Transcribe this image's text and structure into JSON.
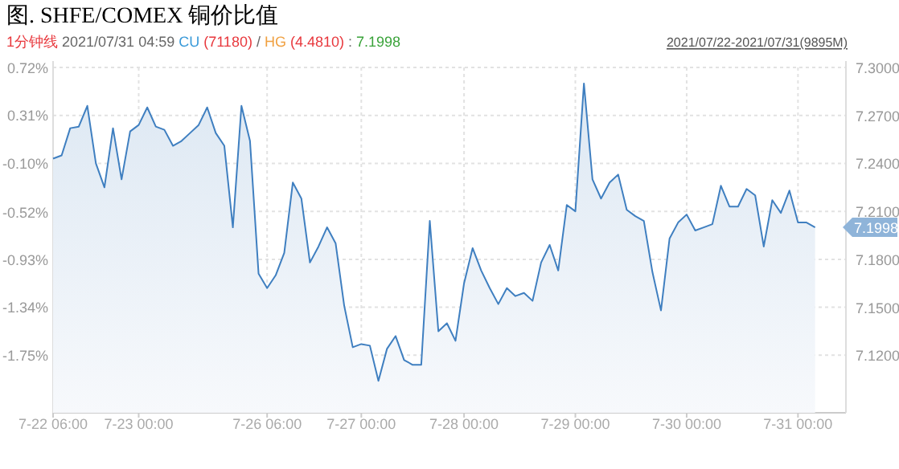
{
  "chart_data": {
    "type": "area",
    "title": "图. SHFE/COMEX 铜价比值",
    "annotations": [
      "1分钟线 2021/07/31 04:59 CU (71180) / HG (4.4810) : 7.1998",
      "2021/07/22-2021/07/31(9895M)",
      "7.1998"
    ],
    "grid": true,
    "categories": [
      "7-22 06:00",
      null,
      null,
      null,
      null,
      null,
      null,
      null,
      null,
      null,
      "7-23 00:00",
      null,
      null,
      null,
      null,
      null,
      null,
      null,
      null,
      null,
      null,
      null,
      null,
      null,
      null,
      "7-26 06:00",
      null,
      null,
      null,
      null,
      null,
      null,
      null,
      null,
      null,
      null,
      "7-27 00:00",
      null,
      null,
      null,
      null,
      null,
      null,
      null,
      null,
      null,
      null,
      null,
      "7-28 00:00",
      null,
      null,
      null,
      null,
      null,
      null,
      null,
      null,
      null,
      null,
      null,
      null,
      "7-29 00:00",
      null,
      null,
      null,
      null,
      null,
      null,
      null,
      null,
      null,
      null,
      null,
      null,
      "7-30 00:00",
      null,
      null,
      null,
      null,
      null,
      null,
      null,
      null,
      null,
      null,
      null,
      null,
      "7-31 00:00",
      null,
      null,
      null,
      null,
      null
    ],
    "ylim": [
      7.084,
      7.3
    ],
    "yticks": [
      {
        "value": 7.3,
        "label": "7.3000"
      },
      {
        "value": 7.27,
        "label": "7.2700"
      },
      {
        "value": 7.24,
        "label": "7.2400"
      },
      {
        "value": 7.21,
        "label": "7.2100"
      },
      {
        "value": 7.18,
        "label": "7.1800"
      },
      {
        "value": 7.15,
        "label": "7.1500"
      },
      {
        "value": 7.12,
        "label": "7.1200"
      }
    ],
    "y2lim": [
      -2.25,
      0.72
    ],
    "y2ticks": [
      {
        "value": 0.72,
        "label": "0.72%"
      },
      {
        "value": 0.31,
        "label": "0.31%"
      },
      {
        "value": -0.1,
        "label": "-0.10%"
      },
      {
        "value": -0.52,
        "label": "-0.52%"
      },
      {
        "value": -0.93,
        "label": "-0.93%"
      },
      {
        "value": -1.34,
        "label": "-1.34%"
      },
      {
        "value": -1.75,
        "label": "-1.75%"
      }
    ],
    "series": [
      {
        "color": "#3f7fc0",
        "values": [
          7.243,
          7.245,
          7.262,
          7.263,
          7.276,
          7.24,
          7.225,
          7.262,
          7.23,
          7.26,
          7.264,
          7.275,
          7.263,
          7.261,
          7.251,
          7.254,
          7.259,
          7.264,
          7.275,
          7.259,
          7.251,
          7.2,
          7.276,
          7.254,
          7.171,
          7.162,
          7.17,
          7.184,
          7.228,
          7.218,
          7.178,
          7.188,
          7.2,
          7.19,
          7.151,
          7.125,
          7.127,
          7.126,
          7.104,
          7.124,
          7.132,
          7.117,
          7.114,
          7.114,
          7.204,
          7.135,
          7.14,
          7.129,
          7.165,
          7.187,
          7.173,
          7.162,
          7.152,
          7.162,
          7.157,
          7.159,
          7.154,
          7.178,
          7.189,
          7.173,
          7.214,
          7.21,
          7.29,
          7.23,
          7.218,
          7.228,
          7.233,
          7.211,
          7.207,
          7.204,
          7.172,
          7.148,
          7.193,
          7.203,
          7.208,
          7.198,
          7.2,
          7.202,
          7.226,
          7.213,
          7.213,
          7.224,
          7.22,
          7.188,
          7.217,
          7.209,
          7.223,
          7.203,
          7.203,
          7.2,
          null,
          null,
          null
        ]
      }
    ]
  }
}
